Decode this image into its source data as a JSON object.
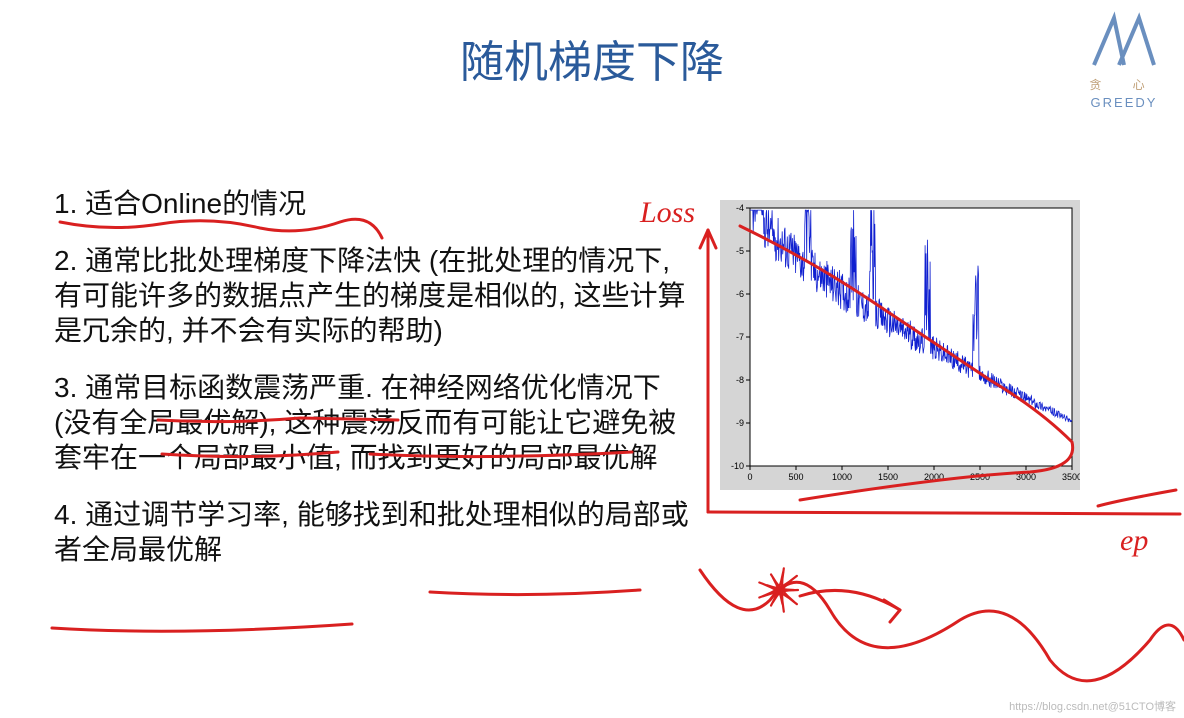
{
  "title": "随机梯度下降",
  "logo": {
    "cn": "贪 心",
    "en": "GREEDY"
  },
  "bullets": [
    "1. 适合Online的情况",
    "2. 通常比批处理梯度下降法快 (在批处理的情况下, 有可能许多的数据点产生的梯度是相似的, 这些计算是冗余的, 并不会有实际的帮助)",
    "3. 通常目标函数震荡严重. 在神经网络优化情况下(没有全局最优解), 这种震荡反而有可能让它避免被套牢在一个局部最小值, 而找到更好的局部最优解",
    "4. 通过调节学习率, 能够找到和批处理相似的局部或者全局最优解"
  ],
  "chart": {
    "type": "line",
    "background_color": "#d5d5d5",
    "plot_background": "#ffffff",
    "axis_color": "#000000",
    "line_color": "#1020d0",
    "line_width": 0.8,
    "xlim": [
      0,
      3500
    ],
    "ylim": [
      -10,
      -4
    ],
    "xtick_step": 500,
    "ytick_step": 1,
    "tick_fontsize": 9,
    "xticks": [
      "0",
      "500",
      "1000",
      "1500",
      "2000",
      "2500",
      "3000",
      "3500"
    ],
    "yticks": [
      "-4",
      "-5",
      "-6",
      "-7",
      "-8",
      "-9",
      "-10"
    ]
  },
  "annotations": {
    "color": "#d92020",
    "stroke_width": 3,
    "loss_label": "Loss",
    "epoch_label": "ep"
  },
  "watermark": "https://blog.csdn.net@51CTO博客"
}
